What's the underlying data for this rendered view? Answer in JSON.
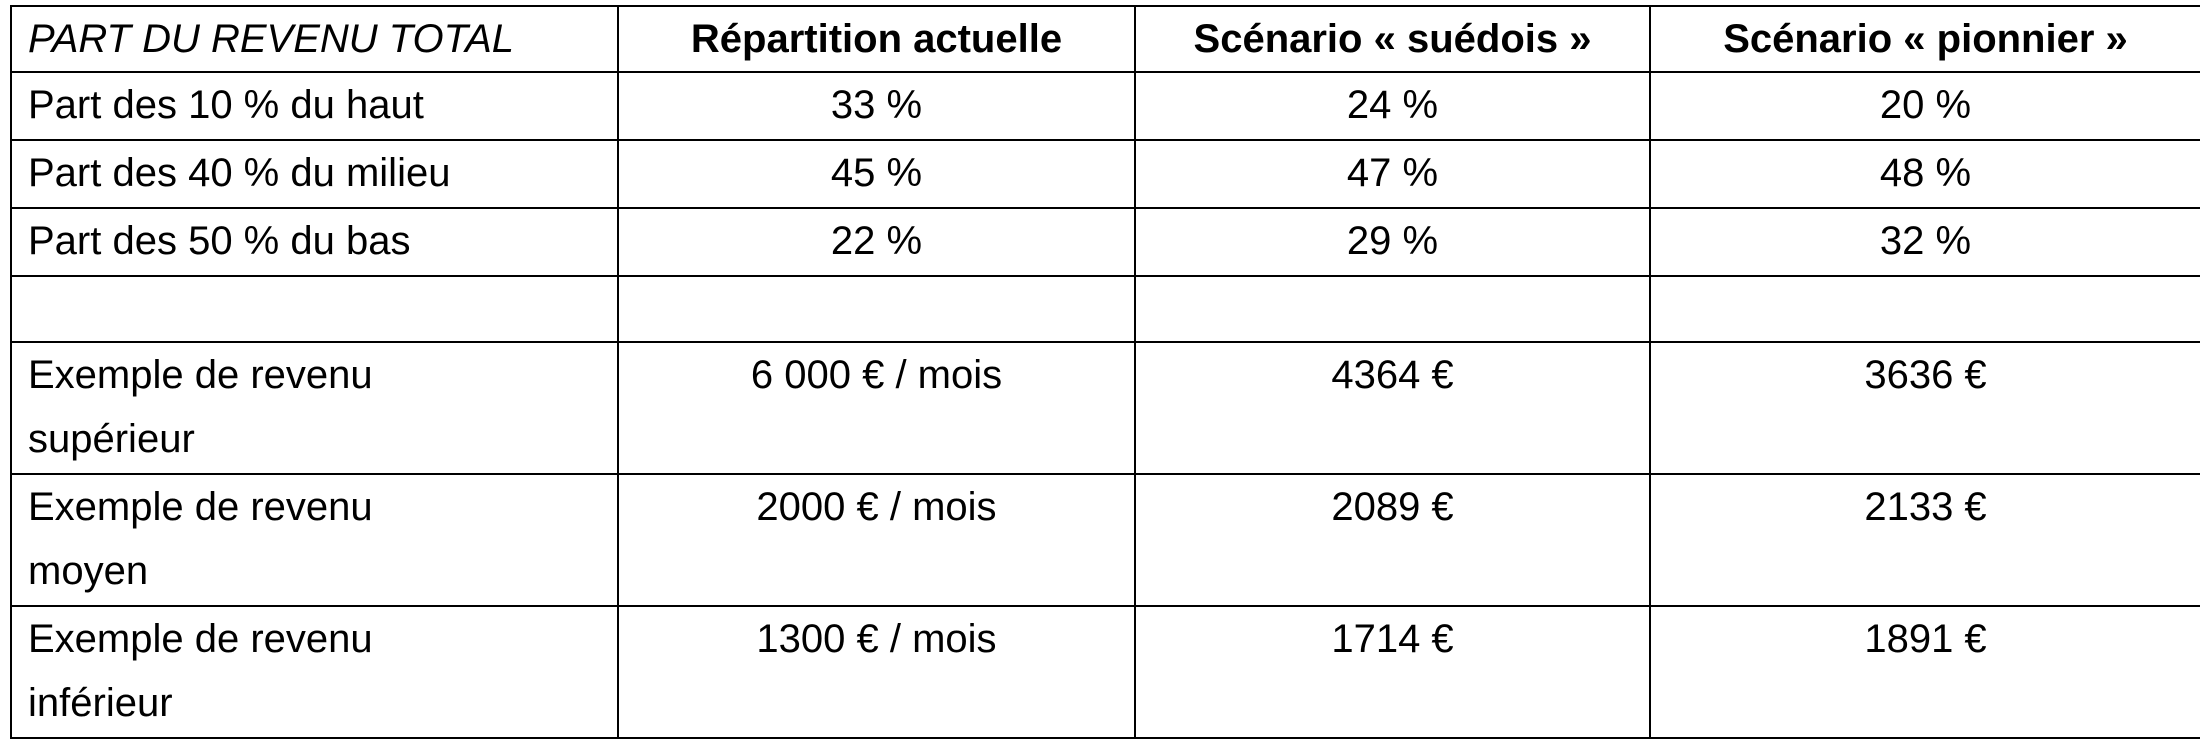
{
  "table": {
    "corner_label": "PART DU REVENU TOTAL",
    "columns": [
      "Répartition actuelle",
      "Scénario « suédois »",
      "Scénario « pionnier »"
    ],
    "rows": [
      {
        "label": "Part des 10 % du haut",
        "values": [
          "33 %",
          "24 %",
          "20 %"
        ]
      },
      {
        "label": "Part des 40 % du milieu",
        "values": [
          "45 %",
          "47 %",
          "48 %"
        ]
      },
      {
        "label": "Part des 50 % du bas",
        "values": [
          "22 %",
          "29 %",
          "32 %"
        ]
      },
      {
        "label": "",
        "values": [
          "",
          "",
          ""
        ]
      },
      {
        "label_line1": "Exemple de revenu",
        "label_line2": "supérieur",
        "values": [
          "6 000 € / mois",
          "4364 €",
          "3636 €"
        ]
      },
      {
        "label_line1": "Exemple de revenu",
        "label_line2": "moyen",
        "values": [
          "2000 € / mois",
          "2089 €",
          "2133 €"
        ]
      },
      {
        "label_line1": "Exemple de revenu",
        "label_line2": "inférieur",
        "values": [
          "1300 € / mois",
          "1714 €",
          "1891 €"
        ]
      }
    ]
  }
}
